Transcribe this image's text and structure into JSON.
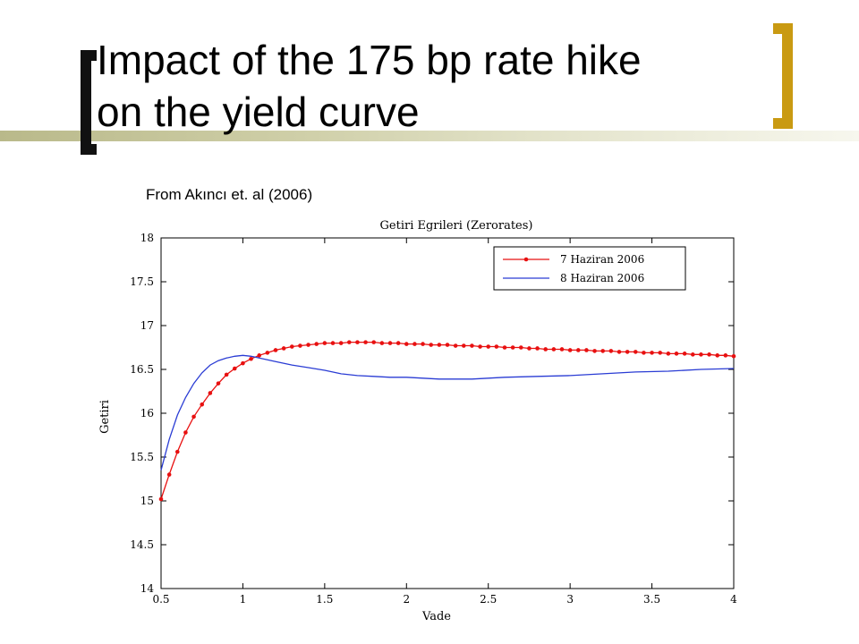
{
  "slide": {
    "title_line1": "Impact of the 175 bp rate hike",
    "title_line2": "on the yield curve",
    "source": "From Akıncı et. al (2006)"
  },
  "colors": {
    "series_red": "#e81010",
    "series_blue": "#2a3cd4",
    "bracket_left": "#111111",
    "bracket_right": "#c99a12"
  },
  "chart_data": {
    "type": "line",
    "title": "Getiri  Egrileri (Zerorates)",
    "xlabel": "Vade",
    "ylabel": "Getiri",
    "xlim": [
      0.5,
      4
    ],
    "ylim": [
      14,
      18
    ],
    "x_ticks": [
      "0.5",
      "1",
      "1.5",
      "2",
      "2.5",
      "3",
      "3.5",
      "4"
    ],
    "y_ticks": [
      "14",
      "14.5",
      "15",
      "15.5",
      "16",
      "16.5",
      "17",
      "17.5",
      "18"
    ],
    "legend_position": "top-right",
    "grid": false,
    "series": [
      {
        "name": "7 Haziran 2006",
        "color": "#e81010",
        "marker": "dot",
        "x": [
          0.5,
          0.55,
          0.6,
          0.65,
          0.7,
          0.75,
          0.8,
          0.85,
          0.9,
          0.95,
          1.0,
          1.05,
          1.1,
          1.15,
          1.2,
          1.25,
          1.3,
          1.35,
          1.4,
          1.45,
          1.5,
          1.55,
          1.6,
          1.65,
          1.7,
          1.75,
          1.8,
          1.85,
          1.9,
          1.95,
          2.0,
          2.05,
          2.1,
          2.15,
          2.2,
          2.25,
          2.3,
          2.35,
          2.4,
          2.45,
          2.5,
          2.55,
          2.6,
          2.65,
          2.7,
          2.75,
          2.8,
          2.85,
          2.9,
          2.95,
          3.0,
          3.05,
          3.1,
          3.15,
          3.2,
          3.25,
          3.3,
          3.35,
          3.4,
          3.45,
          3.5,
          3.55,
          3.6,
          3.65,
          3.7,
          3.75,
          3.8,
          3.85,
          3.9,
          3.95,
          4.0
        ],
        "y": [
          15.02,
          15.3,
          15.56,
          15.78,
          15.96,
          16.1,
          16.23,
          16.34,
          16.44,
          16.51,
          16.57,
          16.62,
          16.66,
          16.69,
          16.72,
          16.74,
          16.76,
          16.77,
          16.78,
          16.79,
          16.8,
          16.8,
          16.8,
          16.81,
          16.81,
          16.81,
          16.81,
          16.8,
          16.8,
          16.8,
          16.79,
          16.79,
          16.79,
          16.78,
          16.78,
          16.78,
          16.77,
          16.77,
          16.77,
          16.76,
          16.76,
          16.76,
          16.75,
          16.75,
          16.75,
          16.74,
          16.74,
          16.73,
          16.73,
          16.73,
          16.72,
          16.72,
          16.72,
          16.71,
          16.71,
          16.71,
          16.7,
          16.7,
          16.7,
          16.69,
          16.69,
          16.69,
          16.68,
          16.68,
          16.68,
          16.67,
          16.67,
          16.67,
          16.66,
          16.66,
          16.65
        ]
      },
      {
        "name": "8 Haziran 2006",
        "color": "#2a3cd4",
        "marker": "none",
        "x": [
          0.5,
          0.55,
          0.6,
          0.65,
          0.7,
          0.75,
          0.8,
          0.85,
          0.9,
          0.95,
          1.0,
          1.05,
          1.1,
          1.2,
          1.3,
          1.4,
          1.5,
          1.6,
          1.7,
          1.8,
          1.9,
          2.0,
          2.1,
          2.2,
          2.3,
          2.4,
          2.5,
          2.6,
          2.8,
          3.0,
          3.2,
          3.4,
          3.6,
          3.8,
          4.0
        ],
        "y": [
          15.35,
          15.7,
          15.98,
          16.18,
          16.34,
          16.46,
          16.55,
          16.6,
          16.63,
          16.65,
          16.66,
          16.65,
          16.63,
          16.59,
          16.55,
          16.52,
          16.49,
          16.45,
          16.43,
          16.42,
          16.41,
          16.41,
          16.4,
          16.39,
          16.39,
          16.39,
          16.4,
          16.41,
          16.42,
          16.43,
          16.45,
          16.47,
          16.48,
          16.5,
          16.51
        ]
      }
    ]
  }
}
